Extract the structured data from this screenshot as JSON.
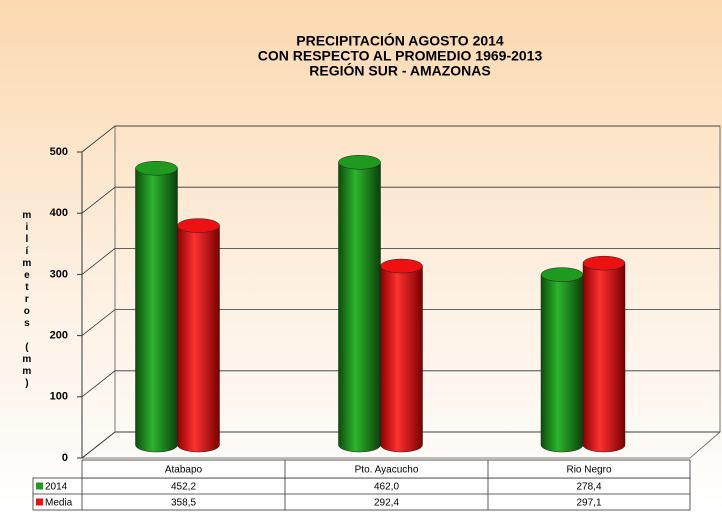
{
  "chart_data": {
    "type": "bar",
    "title": [
      "PRECIPITACIÓN AGOSTO 2014",
      "CON RESPECTO AL PROMEDIO 1969-2013",
      "REGIÓN SUR - AMAZONAS"
    ],
    "y_label": "milímetros (mm)",
    "categories": [
      "Atabapo",
      "Pto. Ayacucho",
      "Rio Negro"
    ],
    "series": [
      {
        "name": "2014",
        "color": "#1e9a1e",
        "values": [
          452.2,
          462.0,
          278.4
        ],
        "value_labels": [
          "452,2",
          "462,0",
          "278,4"
        ]
      },
      {
        "name": "Media",
        "color": "#ee1111",
        "values": [
          358.5,
          292.4,
          297.1
        ],
        "value_labels": [
          "358,5",
          "292,4",
          "297,1"
        ]
      }
    ],
    "ylim": [
      0,
      500
    ],
    "yticks": [
      0,
      100,
      200,
      300,
      400,
      500
    ],
    "grid": true
  }
}
